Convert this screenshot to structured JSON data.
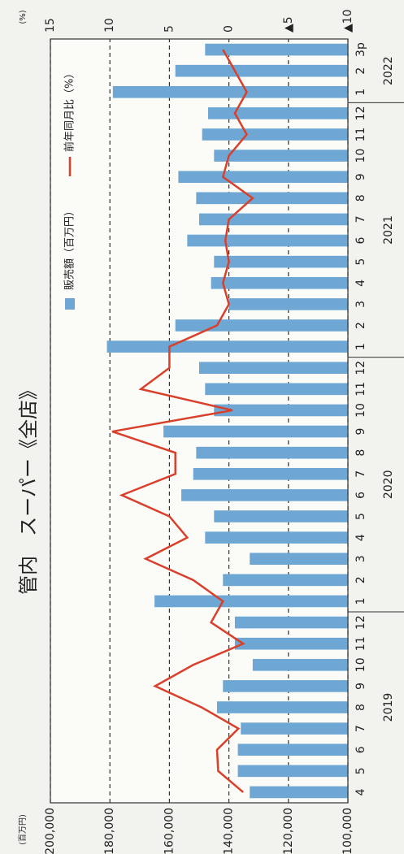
{
  "chart_data": {
    "type": "bar",
    "title": "管内　スーパー《全店》",
    "y_unit": "(百万円)",
    "y2_unit": "(%)",
    "categories": [
      "4",
      "5",
      "6",
      "7",
      "8",
      "9",
      "10",
      "11",
      "12",
      "1",
      "2",
      "3",
      "4",
      "5",
      "6",
      "7",
      "8",
      "9",
      "10",
      "11",
      "12",
      "1",
      "2",
      "3",
      "4",
      "5",
      "6",
      "7",
      "8",
      "9",
      "10",
      "11",
      "12",
      "1",
      "2",
      "3p"
    ],
    "years": [
      "2019",
      "2020",
      "2021",
      "2022"
    ],
    "ylim": [
      100000,
      200000
    ],
    "yticks": [
      {
        "value": 100000,
        "label": "100,000"
      },
      {
        "value": 120000,
        "label": "120,000"
      },
      {
        "value": 140000,
        "label": "140,000"
      },
      {
        "value": 160000,
        "label": "160,000"
      },
      {
        "value": 180000,
        "label": "180,000"
      },
      {
        "value": 200000,
        "label": "200,000"
      }
    ],
    "y2lim": [
      -10,
      15
    ],
    "y2ticks": [
      {
        "value": -10,
        "label": "▲10"
      },
      {
        "value": -5,
        "label": "▲5"
      },
      0,
      5,
      10,
      15
    ],
    "grid": true,
    "series": [
      {
        "name": "販売額（百万円）",
        "type": "bar",
        "color": "#6ea7d4",
        "values": [
          133000,
          137000,
          137000,
          136000,
          144000,
          142000,
          132000,
          138000,
          138000,
          165000,
          142000,
          133000,
          148000,
          145000,
          156000,
          152000,
          151000,
          162000,
          145000,
          148000,
          150000,
          181000,
          158000,
          140000,
          146000,
          145000,
          154000,
          150000,
          151000,
          157000,
          145000,
          149000,
          147000,
          179000,
          158000,
          148000
        ]
      },
      {
        "name": "前年同月比（%）",
        "type": "line",
        "axis": "y2",
        "color": "#d9402b",
        "values": [
          -1.2,
          0.9,
          1.0,
          -0.8,
          2.3,
          6.2,
          3.0,
          -1.2,
          1.5,
          0.5,
          3.0,
          7.0,
          3.5,
          5.0,
          9.0,
          4.5,
          4.5,
          9.8,
          -0.3,
          7.4,
          5.0,
          5.0,
          1.0,
          0.0,
          0.5,
          0.0,
          0.3,
          0.0,
          -2.0,
          0.5,
          0.0,
          -1.5,
          -0.5,
          -1.5,
          -0.5,
          0.5
        ]
      }
    ]
  }
}
